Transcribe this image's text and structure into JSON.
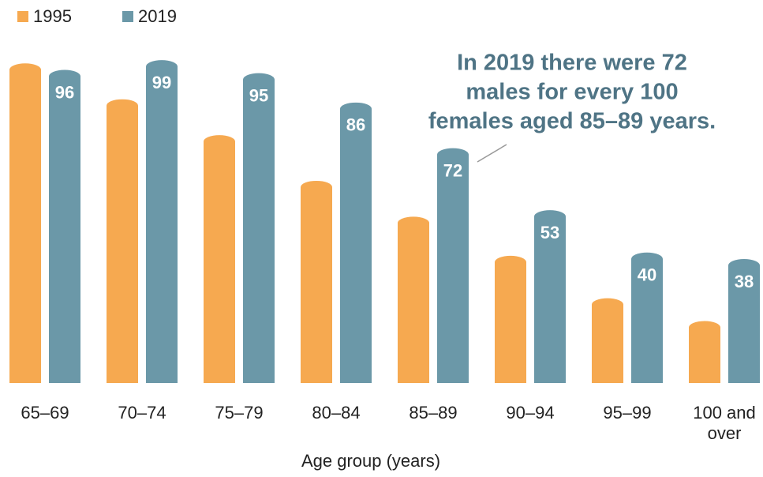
{
  "chart_data": {
    "type": "bar",
    "categories": [
      "65–69",
      "70–74",
      "75–79",
      "80–84",
      "85–89",
      "90–94",
      "95–99",
      "100 and over"
    ],
    "series": [
      {
        "name": "1995",
        "color": "#f6a950",
        "values": [
          98,
          87,
          76,
          62,
          51,
          39,
          26,
          19
        ]
      },
      {
        "name": "2019",
        "color": "#6b98a8",
        "values": [
          96,
          99,
          95,
          86,
          72,
          53,
          40,
          38
        ]
      }
    ],
    "value_labels_series": 1,
    "ylim": [
      0,
      100
    ],
    "xlabel": "Age group (years)",
    "annotation": [
      "In 2019 there were 72",
      "males for every 100",
      "females aged 85–89 years."
    ]
  }
}
